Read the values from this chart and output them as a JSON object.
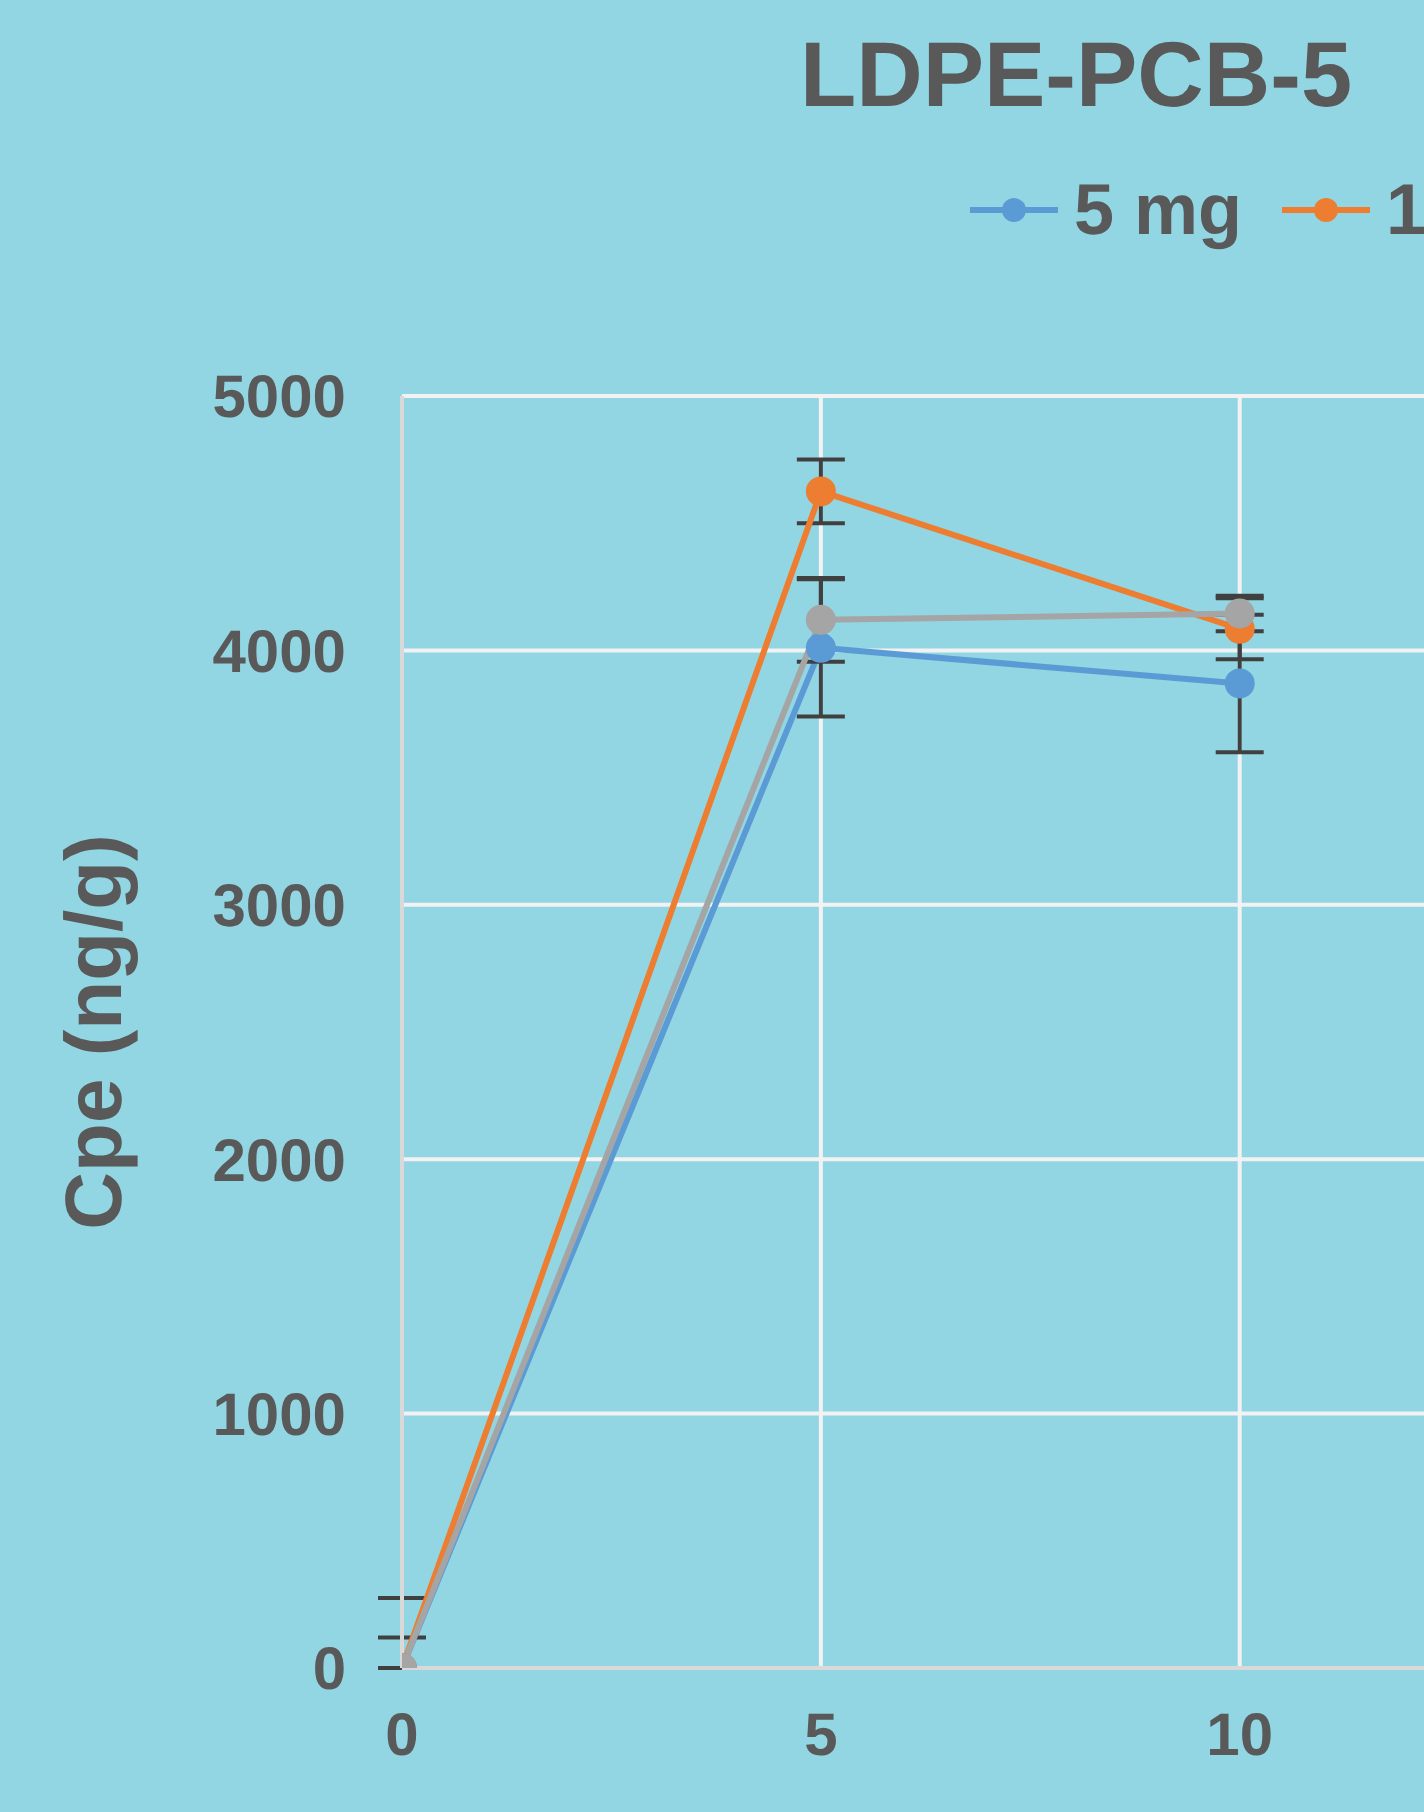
{
  "chart_data": {
    "type": "line",
    "title": "LDPE-PCB-5",
    "ylabel": "Cpe (ng/g)",
    "x": [
      0,
      5,
      10
    ],
    "xlim": [
      0,
      12.2
    ],
    "xticks": [
      0,
      5,
      10
    ],
    "ylim": [
      0,
      5000
    ],
    "yticks": [
      0,
      1000,
      2000,
      3000,
      4000,
      5000
    ],
    "grid": true,
    "legend": "top",
    "marker": "circle",
    "line_style": "solid",
    "series": [
      {
        "name": "5 mg",
        "color": "#5b9bd5",
        "values": [
          0,
          4010,
          3870
        ],
        "errors": [
          [
            0,
            275
          ],
          270,
          270
        ]
      },
      {
        "name": "1",
        "color": "#ed7d31",
        "values": [
          0,
          4625,
          4085
        ],
        "errors": [
          [
            0,
            120
          ],
          125,
          120
        ]
      },
      {
        "color": "#a5a5a5",
        "values": [
          0,
          4120,
          4145
        ],
        "errors": [
          null,
          165,
          70
        ]
      }
    ]
  }
}
